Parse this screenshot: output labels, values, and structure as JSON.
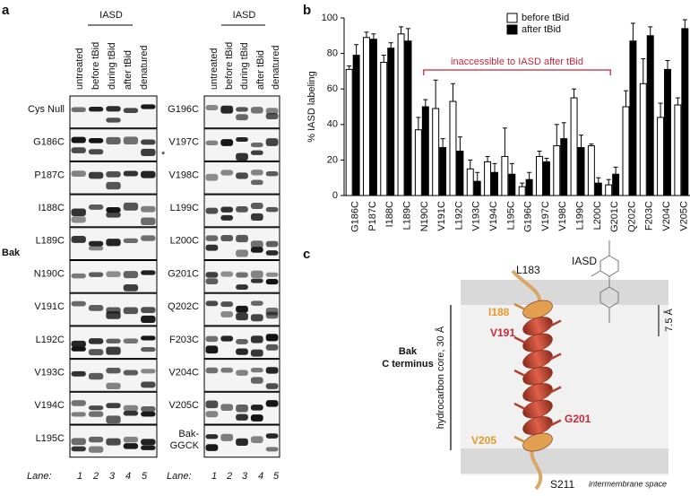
{
  "panel_labels": [
    "a",
    "b",
    "c"
  ],
  "panel_a": {
    "iasd_label": "IASD",
    "conditions": [
      "untreated",
      "before tBid",
      "during tBid",
      "after tBid",
      "denatured"
    ],
    "protein_label": "Bak",
    "left_rows": [
      "Cys Null",
      "G186C",
      "P187C",
      "I188C",
      "L189C",
      "N190C",
      "V191C",
      "L192C",
      "V193C",
      "V194C",
      "L195C"
    ],
    "right_rows": [
      "G196C",
      "V197C",
      "V198C",
      "L199C",
      "L200C",
      "G201C",
      "Q202C",
      "F203C",
      "V204C",
      "V205C"
    ],
    "control_row": [
      "Bak-",
      "GGCK"
    ],
    "asterisk": "*",
    "lane_label": "Lane:",
    "lanes": [
      1,
      2,
      3,
      4,
      5
    ]
  },
  "chart_data": {
    "type": "bar",
    "categories": [
      "G186C",
      "P187C",
      "I188C",
      "L189C",
      "N190C",
      "V191C",
      "L192C",
      "V193C",
      "V194C",
      "L195C",
      "G196C",
      "V197C",
      "V198C",
      "L199C",
      "L200C",
      "G201C",
      "Q202C",
      "F203C",
      "V204C",
      "V205C"
    ],
    "series": [
      {
        "name": "before tBid",
        "color": "#ffffff",
        "values": [
          71,
          89,
          75,
          91,
          37,
          49,
          53,
          15,
          19,
          22,
          5,
          22,
          28,
          55,
          28,
          6,
          50,
          63,
          44,
          51
        ],
        "errors": [
          2,
          3,
          4,
          4,
          7,
          16,
          10,
          5,
          3,
          16,
          2,
          3,
          12,
          5,
          1,
          3,
          9,
          14,
          8,
          4
        ]
      },
      {
        "name": "after tBid",
        "color": "#000000",
        "values": [
          79,
          88,
          83,
          87,
          50,
          27,
          25,
          8,
          13,
          12,
          9,
          19,
          32,
          27,
          7,
          12,
          87,
          90,
          71,
          94
        ],
        "errors": [
          6,
          3,
          3,
          7,
          4,
          5,
          8,
          5,
          5,
          6,
          4,
          2,
          9,
          7,
          3,
          4,
          10,
          5,
          5,
          5
        ]
      }
    ],
    "ylabel": "% IASD labeling",
    "ylim": [
      0,
      100
    ],
    "yticks": [
      0,
      20,
      40,
      60,
      80,
      100
    ],
    "annotation": "inaccessible to IASD after tBid",
    "annotation_color": "#c8283c",
    "legend": "top"
  },
  "panel_c": {
    "title_lines": [
      "Bak",
      "C terminus"
    ],
    "residues": [
      "L183",
      "I188",
      "V191",
      "G201",
      "V205",
      "S211"
    ],
    "probe": "IASD",
    "scale": "7.5 Å",
    "core_label": "hydrocarbon core, 30 Å",
    "space_label": "intermembrane space"
  }
}
